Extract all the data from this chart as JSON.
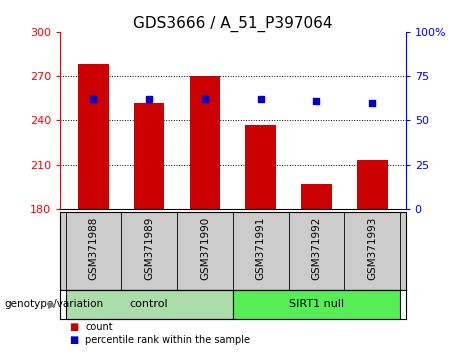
{
  "title": "GDS3666 / A_51_P397064",
  "samples": [
    "GSM371988",
    "GSM371989",
    "GSM371990",
    "GSM371991",
    "GSM371992",
    "GSM371993"
  ],
  "bar_values": [
    278,
    252,
    270,
    237,
    197,
    213
  ],
  "percentile_values": [
    62,
    62,
    62,
    62,
    61,
    60
  ],
  "bar_color": "#cc0000",
  "dot_color": "#0000cc",
  "y_min": 180,
  "y_max": 300,
  "y_ticks": [
    180,
    210,
    240,
    270,
    300
  ],
  "y2_min": 0,
  "y2_max": 100,
  "y2_ticks": [
    0,
    25,
    50,
    75,
    100
  ],
  "y2_tick_labels": [
    "0",
    "25",
    "50",
    "75",
    "100%"
  ],
  "groups": [
    {
      "label": "control",
      "color": "#aaddaa"
    },
    {
      "label": "SIRT1 null",
      "color": "#55ee55"
    }
  ],
  "group_label_prefix": "genotype/variation",
  "legend_count_label": "count",
  "legend_pct_label": "percentile rank within the sample",
  "bg_color": "#ffffff",
  "tick_area_color": "#cccccc",
  "bar_width": 0.55,
  "title_fontsize": 11,
  "tick_fontsize": 8,
  "label_fontsize": 7.5,
  "x_xlim_left": -0.6,
  "x_xlim_right": 5.6,
  "grid_lines": [
    210,
    240,
    270
  ]
}
